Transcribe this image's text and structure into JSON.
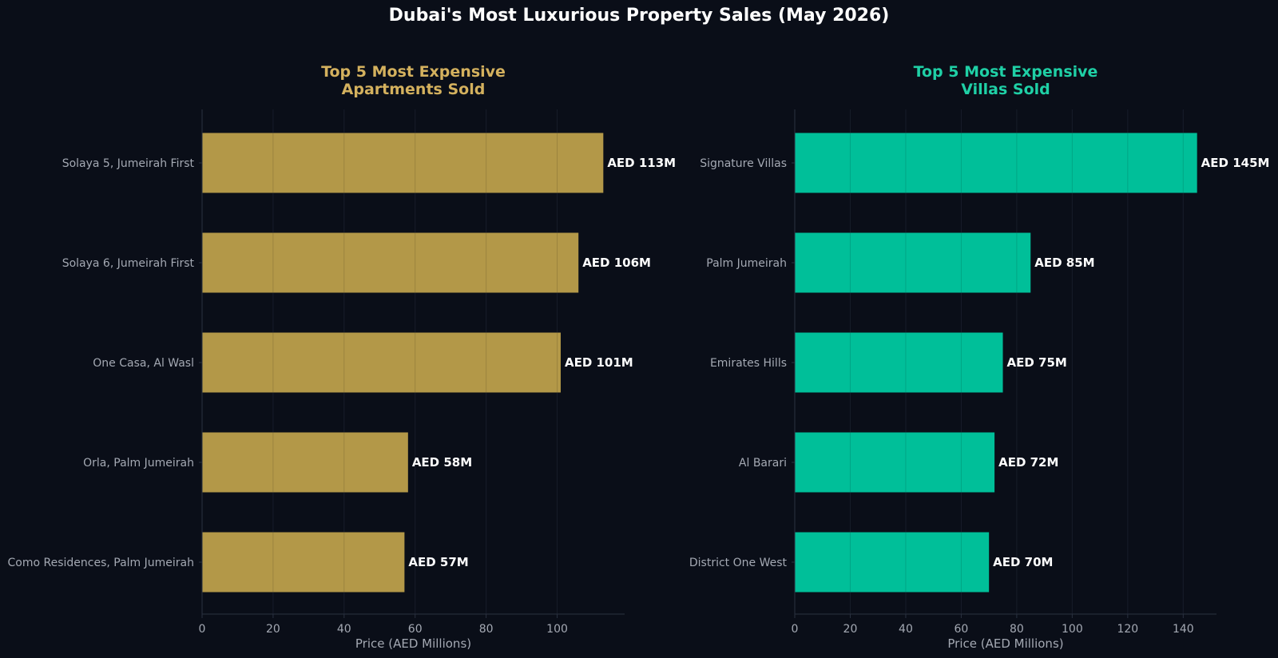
{
  "title": "Dubai's Most Luxurious Property Sales (May 2026)",
  "chart_data": [
    {
      "type": "bar",
      "orientation": "horizontal",
      "title": "Top 5 Most Expensive\nApartments Sold",
      "xlabel": "Price (AED Millions)",
      "ylabel": "",
      "xlim": [
        0,
        119
      ],
      "xticks": [
        0,
        20,
        40,
        60,
        80,
        100
      ],
      "grid": "vertical",
      "color": "#b39848",
      "title_color": "#d4b15e",
      "categories": [
        "Solaya 5, Jumeirah First",
        "Solaya 6, Jumeirah First",
        "One Casa, Al Wasl",
        "Orla, Palm Jumeirah",
        "Como Residences, Palm Jumeirah"
      ],
      "values": [
        113,
        106,
        101,
        58,
        57
      ],
      "data_labels": [
        "AED 113M",
        "AED 106M",
        "AED 101M",
        "AED 58M",
        "AED 57M"
      ]
    },
    {
      "type": "bar",
      "orientation": "horizontal",
      "title": "Top 5 Most Expensive\nVillas Sold",
      "xlabel": "Price (AED Millions)",
      "ylabel": "",
      "xlim": [
        0,
        152
      ],
      "xticks": [
        0,
        20,
        40,
        60,
        80,
        100,
        120,
        140
      ],
      "grid": "vertical",
      "color": "#00bf99",
      "title_color": "#1fd0a6",
      "categories": [
        "Signature Villas",
        "Palm Jumeirah",
        "Emirates Hills",
        "Al Barari",
        "District One West"
      ],
      "values": [
        145,
        85,
        75,
        72,
        70
      ],
      "data_labels": [
        "AED 145M",
        "AED 85M",
        "AED 75M",
        "AED 72M",
        "AED 70M"
      ]
    }
  ]
}
